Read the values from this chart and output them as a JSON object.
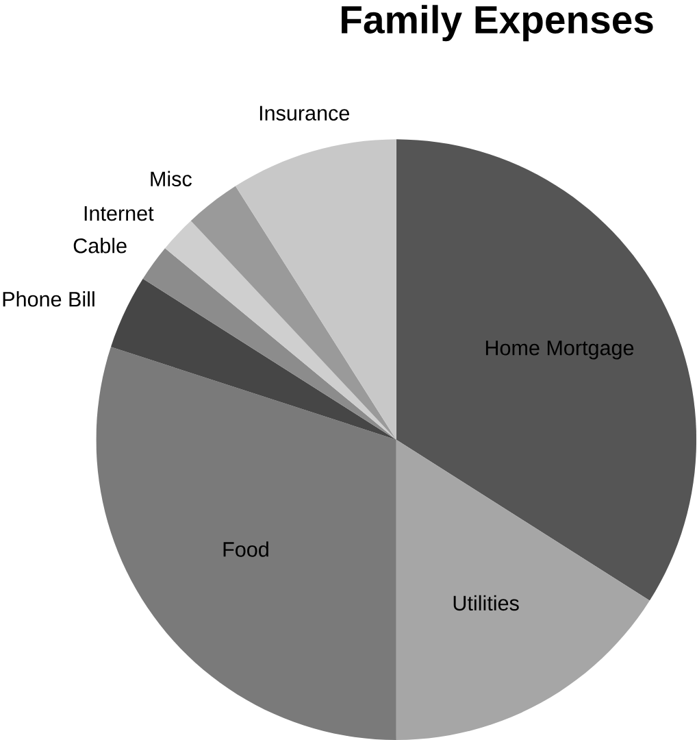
{
  "chart_data": {
    "type": "pie",
    "title": "Family Expenses",
    "categories": [
      "Home Mortgage",
      "Utilities",
      "Food",
      "Phone Bill",
      "Cable",
      "Internet",
      "Misc",
      "Insurance"
    ],
    "values": [
      34,
      16,
      30,
      4,
      2,
      2,
      3,
      9
    ],
    "colors": [
      "#555555",
      "#a6a6a6",
      "#7a7a7a",
      "#464646",
      "#8c8c8c",
      "#cfcfcf",
      "#9a9a9a",
      "#c8c8c8"
    ]
  }
}
